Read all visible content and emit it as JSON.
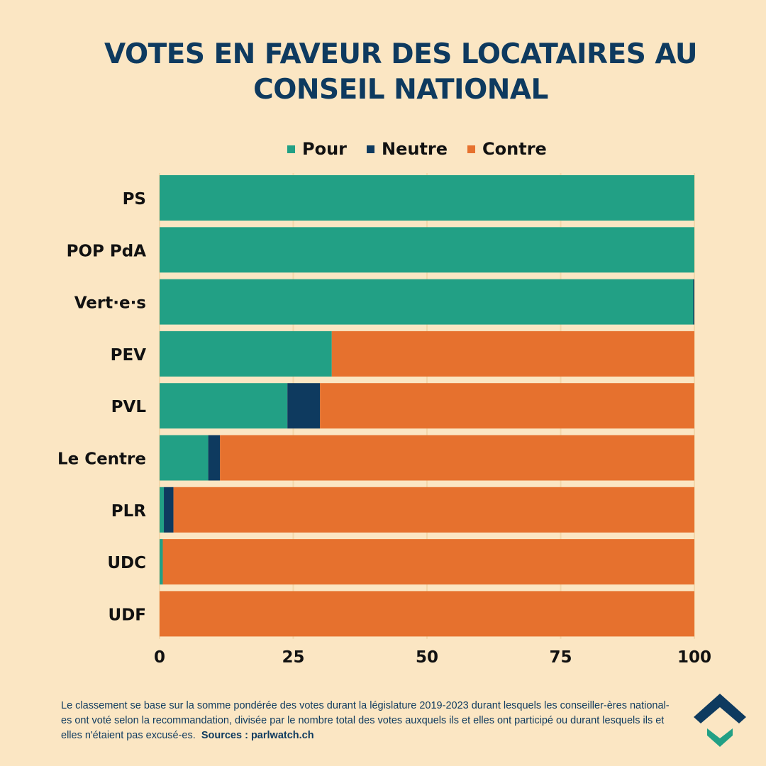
{
  "title_lines": [
    "VOTES EN FAVEUR DES LOCATAIRES AU",
    "CONSEIL NATIONAL"
  ],
  "legend": [
    {
      "label": "Pour",
      "color": "#22a085"
    },
    {
      "label": "Neutre",
      "color": "#0e3a5f"
    },
    {
      "label": "Contre",
      "color": "#e6712e"
    }
  ],
  "footnote": {
    "text": "Le classement se base sur la somme pondérée des votes durant la législature 2019-2023 durant lesquels les conseiller-ères national-es ont voté selon la recommandation, divisée par le nombre total des votes auxquels ils et elles ont participé ou durant lesquels ils et elles n'étaient pas excusé-es.",
    "sources": "Sources : parlwatch.ch"
  },
  "logo": "parlwatch-logo-icon",
  "chart_data": {
    "type": "bar",
    "orientation": "horizontal",
    "stacked": true,
    "title": "VOTES EN FAVEUR DES LOCATAIRES AU CONSEIL NATIONAL",
    "xlabel": "",
    "ylabel": "",
    "categories": [
      "PS",
      "POP PdA",
      "Vert·e·s",
      "PEV",
      "PVL",
      "Le Centre",
      "PLR",
      "UDC",
      "UDF"
    ],
    "series": [
      {
        "name": "Pour",
        "color": "#22a085",
        "values": [
          100,
          100,
          99.8,
          32.2,
          23.9,
          9.1,
          0.8,
          0.6,
          0
        ]
      },
      {
        "name": "Neutre",
        "color": "#0e3a5f",
        "values": [
          0,
          0,
          0.2,
          0,
          6.1,
          2.2,
          1.8,
          0,
          0
        ]
      },
      {
        "name": "Contre",
        "color": "#e6712e",
        "values": [
          0,
          0,
          0,
          67.8,
          70.0,
          88.7,
          97.4,
          99.4,
          100
        ]
      }
    ],
    "xlim": [
      0,
      100
    ],
    "xticks": [
      0,
      25,
      50,
      75,
      100
    ],
    "grid": true,
    "legend_position": "top"
  }
}
